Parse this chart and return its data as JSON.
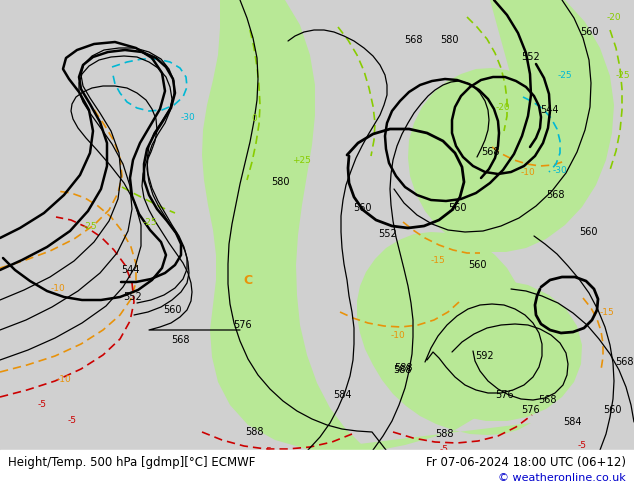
{
  "title_left": "Height/Temp. 500 hPa [gdmp][°C] ECMWF",
  "title_right": "Fr 07-06-2024 18:00 UTC (06+12)",
  "copyright": "© weatheronline.co.uk",
  "bg_color": "#d0d0d0",
  "green_color": "#b8e896",
  "white_bar": "#ffffff",
  "black": "#000000",
  "orange": "#E8920A",
  "red": "#cc0000",
  "green_temp": "#88cc00",
  "cyan_temp": "#00b8d4",
  "title_fontsize": 8.5,
  "copyright_fontsize": 8,
  "copyright_color": "#0000cc",
  "fig_w": 6.34,
  "fig_h": 4.9,
  "dpi": 100
}
